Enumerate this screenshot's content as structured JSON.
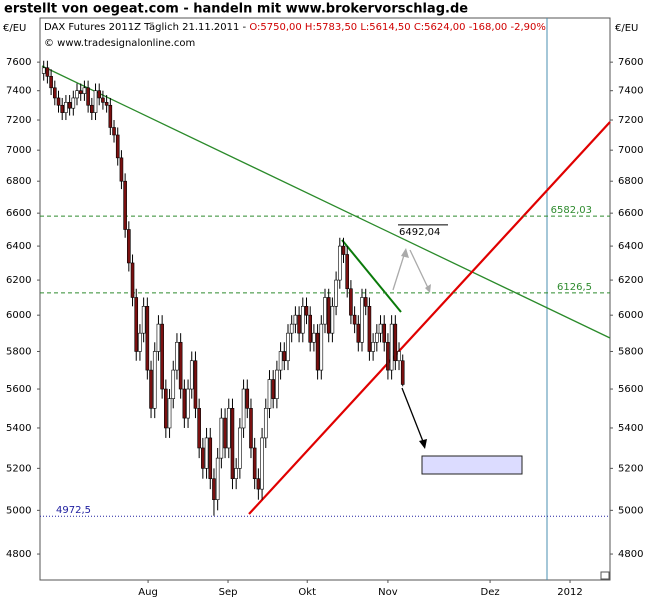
{
  "chart_data": {
    "type": "candlestick",
    "title": "erstellt von oegeat.com - handeln mit www.brokervorschlag.de",
    "subtitle": "DAX Futures 2011Z Täglich  21.11.2011 - ",
    "quote": "O:5750,00 H:5783,50 L:5614,50 C:5624,00 -168,00 -2,90%",
    "source": "© www.tradesignalonline.com",
    "y_label": "€/EU",
    "y2_label": "€/EU",
    "log_scale": true,
    "ylim": [
      4685,
      7920
    ],
    "yticks": [
      4800,
      5000,
      5200,
      5400,
      5600,
      5800,
      6000,
      6200,
      6400,
      6600,
      6800,
      7000,
      7200,
      7400,
      7600
    ],
    "xlim": [
      -1,
      153
    ],
    "xticks": [
      {
        "value": 28.2,
        "label": "Aug"
      },
      {
        "value": 49.8,
        "label": "Sep"
      },
      {
        "value": 71.2,
        "label": "Okt"
      },
      {
        "value": 93,
        "label": "Nov"
      },
      {
        "value": 120.6,
        "label": "Dez"
      },
      {
        "value": 142.2,
        "label": "2012"
      }
    ],
    "up_color": "#ffffff",
    "down_color": "#7a1010",
    "open": [
      7520,
      7560,
      7500,
      7420,
      7350,
      7300,
      7250,
      7320,
      7280,
      7350,
      7400,
      7380,
      7420,
      7300,
      7250,
      7400,
      7350,
      7320,
      7300,
      7150,
      7100,
      6950,
      6800,
      6500,
      6300,
      6100,
      5800,
      5900,
      6050,
      5700,
      5500,
      5800,
      5950,
      5600,
      5400,
      5550,
      5700,
      5850,
      5600,
      5450,
      5600,
      5750,
      5500,
      5300,
      5200,
      5350,
      5150,
      5050,
      5250,
      5450,
      5300,
      5500,
      5150,
      5200,
      5400,
      5600,
      5500,
      5300,
      5150,
      5100,
      5350,
      5500,
      5650,
      5550,
      5700,
      5800,
      5750,
      5900,
      5950,
      6000,
      5900,
      6050,
      6000,
      5850,
      5900,
      5700,
      5950,
      6100,
      5900,
      6050,
      6200,
      6400,
      6350,
      6150,
      6000,
      5950,
      5850,
      6100,
      6050,
      5800,
      5850,
      5900,
      5950,
      5850,
      5700,
      5950,
      5750,
      5750
    ],
    "high": [
      7610,
      7610,
      7550,
      7470,
      7400,
      7350,
      7370,
      7370,
      7400,
      7450,
      7450,
      7470,
      7470,
      7350,
      7450,
      7450,
      7400,
      7370,
      7350,
      7200,
      7150,
      7000,
      6850,
      6550,
      6350,
      6150,
      5950,
      6100,
      6100,
      5750,
      5850,
      6000,
      6000,
      5650,
      5600,
      5750,
      5900,
      5900,
      5650,
      5650,
      5800,
      5800,
      5550,
      5350,
      5400,
      5400,
      5200,
      5300,
      5500,
      5500,
      5550,
      5550,
      5250,
      5450,
      5650,
      5650,
      5550,
      5350,
      5200,
      5400,
      5550,
      5700,
      5700,
      5750,
      5850,
      5850,
      5950,
      6000,
      6050,
      6050,
      6100,
      6100,
      6050,
      5950,
      5950,
      6000,
      6150,
      6150,
      6100,
      6250,
      6450,
      6450,
      6400,
      6200,
      6050,
      6000,
      6150,
      6150,
      6100,
      5900,
      5950,
      6000,
      6000,
      5900,
      6000,
      6000,
      5850,
      5783.5
    ],
    "low": [
      7470,
      7450,
      7370,
      7300,
      7250,
      7200,
      7200,
      7230,
      7230,
      7300,
      7330,
      7330,
      7250,
      7200,
      7200,
      7300,
      7270,
      7250,
      7100,
      7050,
      6900,
      6750,
      6450,
      6250,
      6050,
      5750,
      5750,
      5850,
      5650,
      5450,
      5450,
      5750,
      5550,
      5350,
      5350,
      5500,
      5650,
      5550,
      5400,
      5400,
      5550,
      5450,
      5250,
      5150,
      5150,
      5100,
      4975,
      5000,
      5200,
      5250,
      5250,
      5100,
      5100,
      5150,
      5350,
      5450,
      5250,
      5100,
      5050,
      5050,
      5300,
      5450,
      5500,
      5500,
      5650,
      5700,
      5700,
      5850,
      5900,
      5850,
      5850,
      5950,
      5800,
      5800,
      5650,
      5650,
      5900,
      5850,
      5850,
      6000,
      6150,
      6300,
      6100,
      5950,
      5900,
      5800,
      5800,
      6000,
      5750,
      5750,
      5800,
      5850,
      5800,
      5650,
      5650,
      5700,
      5700,
      5614.5
    ],
    "close": [
      7560,
      7500,
      7420,
      7350,
      7300,
      7250,
      7320,
      7280,
      7350,
      7400,
      7380,
      7420,
      7300,
      7250,
      7400,
      7350,
      7320,
      7300,
      7150,
      7100,
      6950,
      6800,
      6500,
      6300,
      6100,
      5800,
      5900,
      6050,
      5700,
      5500,
      5800,
      5950,
      5600,
      5400,
      5550,
      5700,
      5850,
      5600,
      5450,
      5600,
      5750,
      5500,
      5300,
      5200,
      5350,
      5150,
      5050,
      5250,
      5450,
      5300,
      5500,
      5150,
      5200,
      5400,
      5600,
      5500,
      5300,
      5150,
      5100,
      5350,
      5500,
      5650,
      5550,
      5700,
      5800,
      5750,
      5900,
      5950,
      6000,
      5900,
      6050,
      6000,
      5850,
      5900,
      5700,
      5950,
      6100,
      5900,
      6050,
      6200,
      6400,
      6350,
      6150,
      6000,
      5950,
      5850,
      6100,
      6050,
      5800,
      5850,
      5900,
      5950,
      5850,
      5700,
      5950,
      5750,
      5800,
      5624
    ],
    "levels": [
      {
        "value": 6582.03,
        "label": "6582,03",
        "color": "#2e8b2e"
      },
      {
        "value": 6126.5,
        "label": "6126,5",
        "color": "#2e8b2e"
      },
      {
        "value": 4972.5,
        "label": "4972,5",
        "color": "#2020a0"
      }
    ],
    "target": {
      "value": 6492.04,
      "label": "6492,04"
    }
  }
}
